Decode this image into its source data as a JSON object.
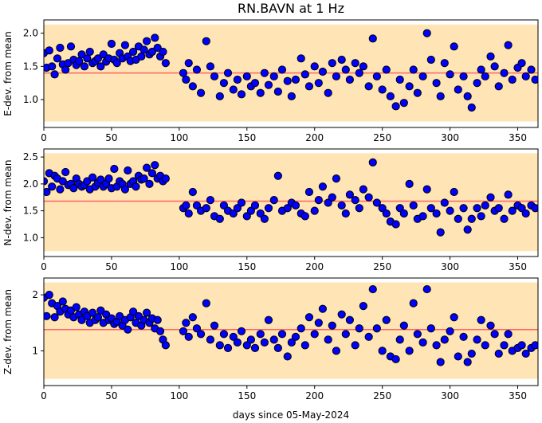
{
  "figure": {
    "title": "RN.BAVN at 1 Hz",
    "xlabel": "days since 05-May-2024"
  },
  "colors": {
    "band": "#ffe4b5",
    "mean_line": "#ff6666",
    "marker_fill": "#0000ff",
    "marker_edge": "#000000"
  },
  "chart_data": [
    {
      "type": "scatter",
      "ylabel": "E-dev. from mean",
      "xlim": [
        0,
        365
      ],
      "ylim": [
        0.58,
        2.2
      ],
      "xticks": [
        0,
        50,
        100,
        150,
        200,
        250,
        300,
        350
      ],
      "yticks": [
        1.0,
        1.5,
        2.0
      ],
      "band": [
        0.67,
        2.13
      ],
      "mean": 1.4,
      "grid": false,
      "series": [
        {
          "x": [
            0,
            2,
            4,
            6,
            8,
            10,
            12,
            14,
            16,
            18,
            20,
            22,
            24,
            26,
            28,
            30,
            32,
            34,
            36,
            38,
            40,
            42,
            44,
            46,
            48,
            50,
            52,
            54,
            56,
            58,
            60,
            62,
            64,
            66,
            68,
            70,
            72,
            74,
            76,
            78,
            80,
            82,
            84,
            86,
            88,
            90,
            103,
            105,
            107,
            110,
            113,
            116,
            120,
            123,
            126,
            130,
            133,
            136,
            140,
            143,
            146,
            150,
            153,
            156,
            160,
            163,
            166,
            170,
            173,
            176,
            180,
            183,
            186,
            190,
            193,
            196,
            200,
            203,
            206,
            210,
            213,
            216,
            220,
            223,
            226,
            230,
            233,
            236,
            240,
            243,
            246,
            250,
            253,
            256,
            260,
            263,
            266,
            270,
            273,
            276,
            280,
            283,
            286,
            290,
            293,
            296,
            300,
            303,
            306,
            310,
            313,
            316,
            320,
            323,
            326,
            330,
            333,
            336,
            340,
            343,
            346,
            350,
            353,
            356,
            360,
            363
          ],
          "y": [
            1.7,
            1.48,
            1.74,
            1.5,
            1.38,
            1.62,
            1.78,
            1.53,
            1.45,
            1.55,
            1.8,
            1.6,
            1.52,
            1.58,
            1.68,
            1.5,
            1.62,
            1.72,
            1.55,
            1.58,
            1.62,
            1.5,
            1.68,
            1.57,
            1.62,
            1.84,
            1.6,
            1.55,
            1.7,
            1.62,
            1.82,
            1.65,
            1.58,
            1.72,
            1.6,
            1.8,
            1.65,
            1.75,
            1.88,
            1.68,
            1.72,
            1.93,
            1.78,
            1.65,
            1.72,
            1.55,
            1.4,
            1.3,
            1.55,
            1.2,
            1.45,
            1.1,
            1.88,
            1.5,
            1.35,
            1.05,
            1.25,
            1.4,
            1.15,
            1.3,
            1.08,
            1.35,
            1.2,
            1.25,
            1.1,
            1.4,
            1.22,
            1.35,
            1.12,
            1.45,
            1.28,
            1.05,
            1.3,
            1.62,
            1.38,
            1.2,
            1.5,
            1.25,
            1.42,
            1.1,
            1.55,
            1.35,
            1.6,
            1.45,
            1.3,
            1.55,
            1.4,
            1.5,
            1.2,
            1.92,
            1.35,
            1.15,
            1.45,
            1.05,
            0.9,
            1.3,
            0.95,
            1.2,
            1.45,
            1.1,
            1.35,
            2.0,
            1.6,
            1.25,
            1.05,
            1.55,
            1.38,
            1.8,
            1.15,
            1.35,
            1.05,
            0.88,
            1.25,
            1.45,
            1.35,
            1.65,
            1.5,
            1.2,
            1.4,
            1.82,
            1.3,
            1.48,
            1.55,
            1.35,
            1.45,
            1.3
          ]
        }
      ]
    },
    {
      "type": "scatter",
      "ylabel": "N-dev. from mean",
      "xlim": [
        0,
        365
      ],
      "ylim": [
        0.65,
        2.65
      ],
      "xticks": [
        0,
        50,
        100,
        150,
        200,
        250,
        300,
        350
      ],
      "yticks": [
        1.0,
        1.5,
        2.0,
        2.5
      ],
      "band": [
        0.75,
        2.57
      ],
      "mean": 1.68,
      "grid": false,
      "series": [
        {
          "x": [
            0,
            2,
            4,
            6,
            8,
            10,
            12,
            14,
            16,
            18,
            20,
            22,
            24,
            26,
            28,
            30,
            32,
            34,
            36,
            38,
            40,
            42,
            44,
            46,
            48,
            50,
            52,
            54,
            56,
            58,
            60,
            62,
            64,
            66,
            68,
            70,
            72,
            74,
            76,
            78,
            80,
            82,
            84,
            86,
            88,
            90,
            103,
            105,
            107,
            110,
            113,
            116,
            120,
            123,
            126,
            130,
            133,
            136,
            140,
            143,
            146,
            150,
            153,
            156,
            160,
            163,
            166,
            170,
            173,
            176,
            180,
            183,
            186,
            190,
            193,
            196,
            200,
            203,
            206,
            210,
            213,
            216,
            220,
            223,
            226,
            230,
            233,
            236,
            240,
            243,
            246,
            250,
            253,
            256,
            260,
            263,
            266,
            270,
            273,
            276,
            280,
            283,
            286,
            290,
            293,
            296,
            300,
            303,
            306,
            310,
            313,
            316,
            320,
            323,
            326,
            330,
            333,
            336,
            340,
            343,
            346,
            350,
            353,
            356,
            360,
            363
          ],
          "y": [
            2.05,
            1.85,
            2.2,
            1.95,
            2.15,
            2.1,
            1.9,
            2.05,
            2.22,
            1.98,
            2.0,
            1.92,
            2.1,
            2.0,
            1.95,
            1.98,
            2.05,
            1.9,
            2.12,
            1.95,
            2.02,
            2.08,
            1.95,
            2.0,
            2.1,
            1.92,
            2.28,
            1.95,
            2.05,
            2.0,
            1.9,
            2.25,
            2.0,
            2.05,
            1.95,
            2.15,
            2.08,
            2.1,
            2.3,
            2.0,
            2.2,
            2.35,
            2.1,
            2.15,
            2.05,
            2.1,
            1.55,
            1.6,
            1.45,
            1.85,
            1.6,
            1.5,
            1.55,
            1.7,
            1.4,
            1.35,
            1.6,
            1.5,
            1.45,
            1.55,
            1.65,
            1.4,
            1.5,
            1.6,
            1.45,
            1.35,
            1.55,
            1.7,
            2.15,
            1.5,
            1.55,
            1.65,
            1.6,
            1.45,
            1.4,
            1.85,
            1.5,
            1.7,
            1.95,
            1.65,
            1.75,
            2.1,
            1.6,
            1.45,
            1.8,
            1.7,
            1.55,
            1.9,
            1.75,
            2.4,
            1.65,
            1.55,
            1.45,
            1.3,
            1.25,
            1.55,
            1.45,
            2.0,
            1.6,
            1.35,
            1.4,
            1.9,
            1.55,
            1.45,
            1.1,
            1.65,
            1.5,
            1.85,
            1.35,
            1.55,
            1.15,
            1.35,
            1.55,
            1.4,
            1.6,
            1.75,
            1.5,
            1.55,
            1.35,
            1.8,
            1.5,
            1.6,
            1.55,
            1.45,
            1.6,
            1.55
          ]
        }
      ]
    },
    {
      "type": "scatter",
      "ylabel": "Z-dev. from mean",
      "xlim": [
        0,
        365
      ],
      "ylim": [
        0.38,
        2.3
      ],
      "xticks": [
        0,
        50,
        100,
        150,
        200,
        250,
        300,
        350
      ],
      "yticks": [
        1,
        2
      ],
      "band": [
        0.5,
        2.22
      ],
      "mean": 1.38,
      "grid": false,
      "series": [
        {
          "x": [
            0,
            2,
            4,
            6,
            8,
            10,
            12,
            14,
            16,
            18,
            20,
            22,
            24,
            26,
            28,
            30,
            32,
            34,
            36,
            38,
            40,
            42,
            44,
            46,
            48,
            50,
            52,
            54,
            56,
            58,
            60,
            62,
            64,
            66,
            68,
            70,
            72,
            74,
            76,
            78,
            80,
            82,
            84,
            86,
            88,
            90,
            103,
            105,
            107,
            110,
            113,
            116,
            120,
            123,
            126,
            130,
            133,
            136,
            140,
            143,
            146,
            150,
            153,
            156,
            160,
            163,
            166,
            170,
            173,
            176,
            180,
            183,
            186,
            190,
            193,
            196,
            200,
            203,
            206,
            210,
            213,
            216,
            220,
            223,
            226,
            230,
            233,
            236,
            240,
            243,
            246,
            250,
            253,
            256,
            260,
            263,
            266,
            270,
            273,
            276,
            280,
            283,
            286,
            290,
            293,
            296,
            300,
            303,
            306,
            310,
            313,
            316,
            320,
            323,
            326,
            330,
            333,
            336,
            340,
            343,
            346,
            350,
            353,
            356,
            360,
            363
          ],
          "y": [
            1.95,
            1.62,
            2.0,
            1.85,
            1.6,
            1.8,
            1.7,
            1.88,
            1.75,
            1.65,
            1.72,
            1.6,
            1.78,
            1.65,
            1.55,
            1.7,
            1.62,
            1.5,
            1.68,
            1.55,
            1.6,
            1.72,
            1.5,
            1.65,
            1.55,
            1.58,
            1.48,
            1.52,
            1.62,
            1.45,
            1.55,
            1.38,
            1.6,
            1.7,
            1.5,
            1.62,
            1.45,
            1.55,
            1.68,
            1.5,
            1.58,
            1.4,
            1.55,
            1.35,
            1.2,
            1.1,
            1.35,
            1.5,
            1.25,
            1.6,
            1.4,
            1.3,
            1.85,
            1.2,
            1.45,
            1.1,
            1.3,
            1.05,
            1.25,
            1.15,
            1.35,
            1.1,
            1.2,
            1.05,
            1.3,
            1.15,
            1.55,
            1.2,
            1.05,
            1.3,
            0.9,
            1.15,
            1.25,
            1.4,
            1.1,
            1.6,
            1.3,
            1.5,
            1.75,
            1.2,
            1.45,
            1.0,
            1.65,
            1.3,
            1.55,
            1.1,
            1.4,
            1.8,
            1.25,
            2.1,
            1.4,
            1.0,
            1.55,
            0.9,
            0.85,
            1.2,
            1.45,
            1.0,
            1.85,
            1.3,
            1.15,
            2.1,
            1.4,
            1.1,
            0.8,
            1.2,
            1.35,
            1.6,
            0.9,
            1.25,
            0.8,
            0.95,
            1.2,
            1.55,
            1.1,
            1.45,
            1.3,
            0.95,
            1.1,
            1.3,
            1.0,
            1.05,
            1.1,
            0.95,
            1.05,
            1.1
          ]
        }
      ]
    }
  ]
}
